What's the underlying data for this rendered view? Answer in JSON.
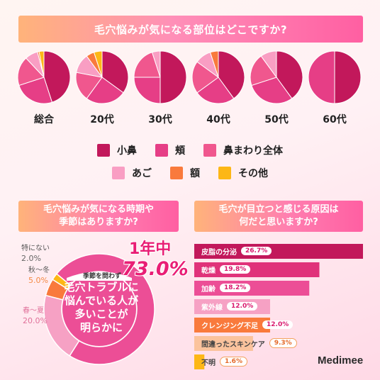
{
  "header": {
    "title": "毛穴悩みが気になる部位はどこですか?"
  },
  "colors": {
    "nose": "#c2185b",
    "cheek": "#e63e86",
    "around_nose": "#f0578e",
    "chin": "#f99ec3",
    "forehead": "#f97a3c",
    "other": "#fdb716",
    "donut_main": "#ec4e96",
    "donut_light": "#f6a1c4"
  },
  "legend": [
    {
      "label": "小鼻",
      "color": "#c2185b"
    },
    {
      "label": "頬",
      "color": "#e63e86"
    },
    {
      "label": "鼻まわり全体",
      "color": "#f0578e"
    },
    {
      "label": "あご",
      "color": "#f99ec3"
    },
    {
      "label": "額",
      "color": "#f97a3c"
    },
    {
      "label": "その他",
      "color": "#fdb716"
    }
  ],
  "chart_data": [
    {
      "type": "pie",
      "title": "毛穴悩みが気になる部位はどこですか?",
      "categories": [
        "小鼻",
        "頬",
        "鼻まわり全体",
        "あご",
        "額",
        "その他"
      ],
      "series": [
        {
          "name": "総合",
          "values": [
            45,
            25,
            18,
            8,
            1,
            3
          ]
        },
        {
          "name": "20代",
          "values": [
            35,
            25,
            18,
            12,
            5,
            5
          ]
        },
        {
          "name": "30代",
          "values": [
            50,
            25,
            20,
            5,
            0,
            0
          ]
        },
        {
          "name": "40代",
          "values": [
            40,
            25,
            20,
            10,
            5,
            0
          ]
        },
        {
          "name": "50代",
          "values": [
            40,
            30,
            20,
            10,
            0,
            0
          ]
        },
        {
          "name": "60代",
          "values": [
            50,
            50,
            0,
            0,
            0,
            0
          ]
        }
      ]
    },
    {
      "type": "pie",
      "title": "毛穴悩みが気になる時期や季節はありますか?",
      "categories": [
        "季節を問わず",
        "春～夏",
        "秋～冬",
        "特にない"
      ],
      "values": [
        73.0,
        20.0,
        5.0,
        2.0
      ]
    },
    {
      "type": "bar",
      "title": "毛穴が目立つと感じる原因は何だと思いますか?",
      "categories": [
        "皮脂の分泌",
        "乾燥",
        "加齢",
        "紫外線",
        "クレンジング不足",
        "間違ったスキンケア",
        "不明"
      ],
      "values": [
        26.7,
        19.8,
        18.2,
        12.0,
        12.0,
        9.3,
        1.6
      ],
      "value_labels": [
        "26.7%",
        "19.8%",
        "18.2%",
        "12.0%",
        "12.0%",
        "9.3%",
        "1.6%"
      ]
    }
  ],
  "donut": {
    "subtitle_line1": "毛穴悩みが気になる時期や",
    "subtitle_line2": "季節はありますか?",
    "headline": "1年中",
    "headline_value": "73.0%",
    "center_note": "季節を問わず",
    "center_message_1": "毛穴トラブルに",
    "center_message_2": "悩んでいる人が",
    "center_message_3": "多いことが",
    "center_message_4": "明らかに",
    "labels": [
      {
        "name": "特にない",
        "value": "2.0%"
      },
      {
        "name": "秋～冬",
        "value": "5.0%"
      },
      {
        "name": "春～夏",
        "value": "20.0%"
      }
    ]
  },
  "bars": {
    "subtitle_line1": "毛穴が目立つと感じる原因は",
    "subtitle_line2": "何だと思いますか?"
  },
  "brand": {
    "name": "Medimee"
  }
}
